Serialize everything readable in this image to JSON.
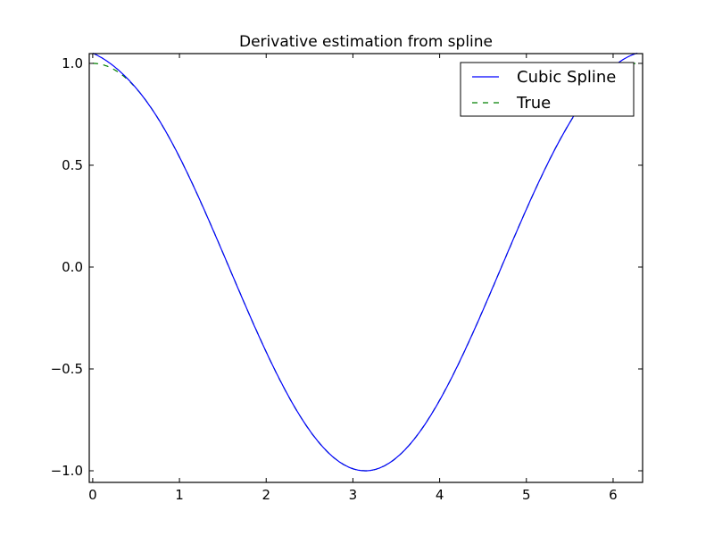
{
  "chart_data": {
    "type": "line",
    "title": "Derivative estimation from spline",
    "xlabel": "",
    "ylabel": "",
    "xlim": [
      -0.04,
      6.34
    ],
    "ylim": [
      -1.057,
      1.048
    ],
    "xticks": [
      0,
      1,
      2,
      3,
      4,
      5,
      6
    ],
    "xtick_labels": [
      "0",
      "1",
      "2",
      "3",
      "4",
      "5",
      "6"
    ],
    "yticks": [
      1.0,
      0.5,
      0.0,
      -0.5,
      -1.0
    ],
    "ytick_labels": [
      "1.0",
      "0.5",
      "0.0",
      "−0.5",
      "−1.0"
    ],
    "grid": false,
    "legend_position": "upper right",
    "series": [
      {
        "name": "Cubic Spline",
        "color": "#0000ff",
        "style": "solid",
        "function": "spline approx of cos(x)",
        "x": [
          0.0,
          0.5,
          1.0,
          1.5,
          2.0,
          2.5,
          3.0,
          3.14,
          3.5,
          4.0,
          4.5,
          5.0,
          5.5,
          6.0,
          6.28
        ],
        "y": [
          1.05,
          0.86,
          0.53,
          0.07,
          -0.42,
          -0.8,
          -0.99,
          -1.0,
          -0.94,
          -0.65,
          -0.21,
          0.28,
          0.71,
          0.97,
          1.05
        ]
      },
      {
        "name": "True",
        "color": "#008000",
        "style": "dashed",
        "function": "cos(x)",
        "x": [
          0.0,
          0.5,
          1.0,
          1.5,
          2.0,
          2.5,
          3.0,
          3.14,
          3.5,
          4.0,
          4.5,
          5.0,
          5.5,
          6.0,
          6.28
        ],
        "y": [
          1.0,
          0.88,
          0.54,
          0.07,
          -0.42,
          -0.8,
          -0.99,
          -1.0,
          -0.94,
          -0.65,
          -0.21,
          0.28,
          0.71,
          0.96,
          1.0
        ]
      }
    ]
  },
  "legend": {
    "items": [
      {
        "label": "Cubic Spline",
        "color": "#0000ff",
        "style": "solid"
      },
      {
        "label": "True",
        "color": "#008000",
        "style": "dashed"
      }
    ]
  }
}
